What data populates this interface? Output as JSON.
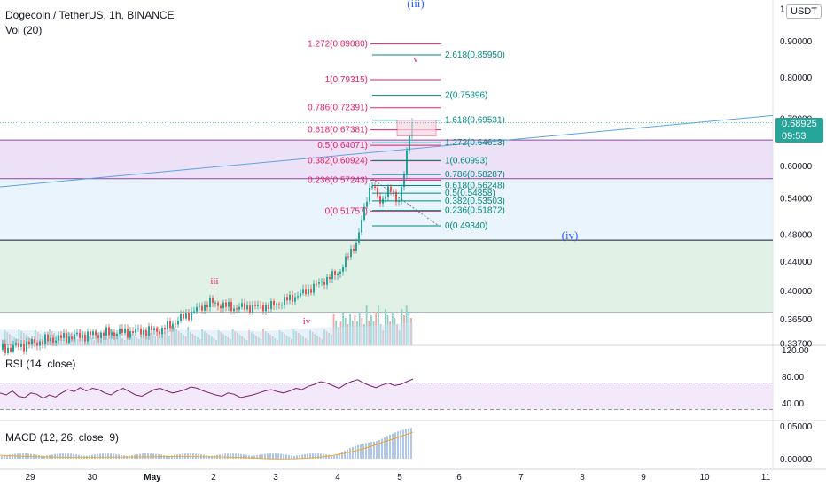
{
  "header": {
    "title": "Dogecoin / TetherUS, 1h, BINANCE",
    "volume_label": "Vol (20)",
    "currency": "USDT",
    "last_price": "0.68925",
    "countdown": "09:53"
  },
  "colors": {
    "up": "#26a69a",
    "down": "#ef5350",
    "fib_red": "#e91e63",
    "fib_green": "#00897b",
    "wave_blue": "#2962ff",
    "zone_purple": "#e9dcf5",
    "zone_blue": "#e6f2fc",
    "zone_green": "#dcefe2",
    "trendline": "#5ba3e0",
    "rsi_line": "#7b1f6a",
    "macd_hist": "#5c8fd6",
    "signal": "#f5a623"
  },
  "chart_data": [
    {
      "panel": "price",
      "type": "candlestick",
      "x_tick_labels": [
        "29",
        "30",
        "May",
        "2",
        "3",
        "4",
        "5",
        "6",
        "7",
        "8",
        "9",
        "10",
        "11"
      ],
      "y_tick_labels": [
        "1",
        "0.90000",
        "0.80000",
        "0.70000",
        "0.60000",
        "0.54000",
        "0.48000",
        "0.44000",
        "0.40000",
        "0.36500",
        "0.33700"
      ],
      "y_scale": "log",
      "last_price": 0.68925,
      "fib_retracement_red": [
        {
          "level": "1.272",
          "value": 0.8908
        },
        {
          "level": "1",
          "value": 0.79315
        },
        {
          "level": "0.786",
          "value": 0.72391
        },
        {
          "level": "0.618",
          "value": 0.67381
        },
        {
          "level": "0.5",
          "value": 0.64071
        },
        {
          "level": "0.382",
          "value": 0.60924
        },
        {
          "level": "0.236",
          "value": 0.57243
        },
        {
          "level": "0",
          "value": 0.51757
        }
      ],
      "fib_extension_green": [
        {
          "level": "2.618",
          "value": 0.8595
        },
        {
          "level": "2",
          "value": 0.75396
        },
        {
          "level": "1.618",
          "value": 0.69531
        },
        {
          "level": "1.272",
          "value": 0.64613
        },
        {
          "level": "1",
          "value": 0.60993
        },
        {
          "level": "0.786",
          "value": 0.58287
        },
        {
          "level": "0.618",
          "value": 0.56248
        },
        {
          "level": "0.5",
          "value": 0.54858
        },
        {
          "level": "0.382",
          "value": 0.53503
        },
        {
          "level": "0.236",
          "value": 0.51872
        },
        {
          "level": "0",
          "value": 0.4934
        }
      ],
      "wave_labels": [
        {
          "text": "(iii)",
          "color": "blue"
        },
        {
          "text": "(iv)",
          "color": "blue"
        },
        {
          "text": "iii",
          "color": "red"
        },
        {
          "text": "iv",
          "color": "red"
        },
        {
          "text": "v",
          "color": "red"
        }
      ],
      "zones": [
        {
          "from": 0.575,
          "to": 0.652,
          "color": "purple"
        },
        {
          "from": 0.471,
          "to": 0.575,
          "color": "blue"
        },
        {
          "from": 0.372,
          "to": 0.471,
          "color": "green"
        }
      ],
      "trendline": {
        "from_price": 0.56,
        "to_price": 0.706
      }
    },
    {
      "panel": "rsi",
      "type": "line",
      "title": "RSI (14, close)",
      "y_tick_labels": [
        "120.00",
        "80.00",
        "40.00"
      ],
      "band": [
        70,
        30
      ],
      "values": [
        55,
        52,
        58,
        50,
        48,
        55,
        53,
        47,
        52,
        49,
        55,
        60,
        57,
        63,
        58,
        62,
        60,
        55,
        52,
        58,
        62,
        57,
        52,
        50,
        55,
        60,
        62,
        58,
        55,
        57,
        60,
        64,
        62,
        58,
        55,
        52,
        50,
        55,
        53,
        48,
        50,
        52,
        55,
        58,
        60,
        57,
        55,
        58,
        62,
        60,
        65,
        68,
        72,
        70,
        66,
        62,
        68,
        72,
        75,
        70,
        66,
        63,
        67,
        70,
        66,
        68,
        72,
        76
      ]
    },
    {
      "panel": "macd",
      "type": "bar",
      "title": "MACD (12, 26, close, 9)",
      "y_tick_labels": [
        "0.05000",
        "0.00000"
      ]
    }
  ]
}
